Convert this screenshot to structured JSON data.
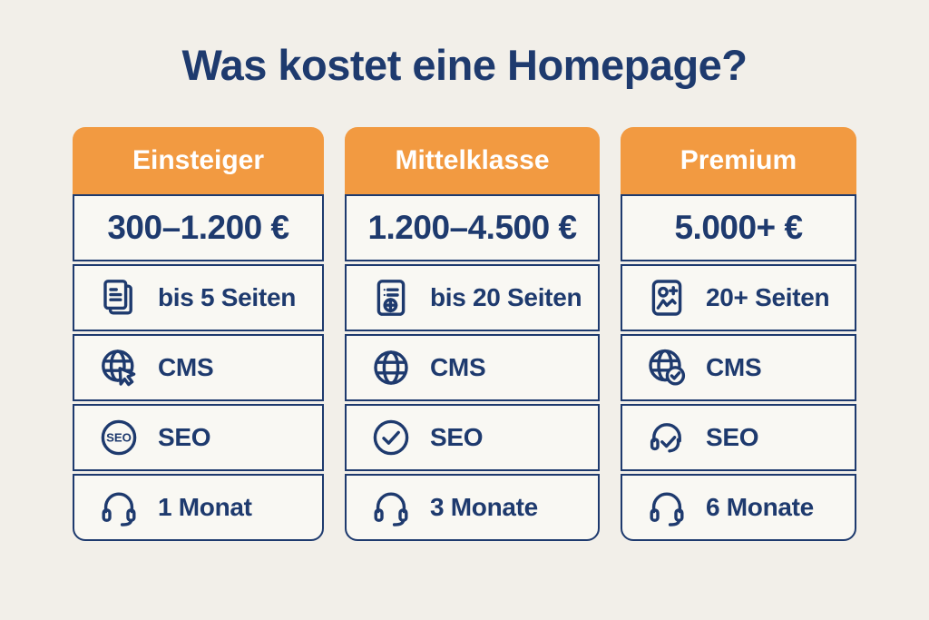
{
  "title": "Was kostet eine Homepage?",
  "colors": {
    "background": "#f2efe9",
    "card_bg": "#f9f8f3",
    "accent_orange": "#f29a41",
    "navy": "#1e3a6e",
    "header_text": "#ffffff"
  },
  "cards": [
    {
      "header": "Einsteiger",
      "price": "300–1.200 €",
      "features": [
        {
          "icon": "pages-icon",
          "label": "bis 5 Seiten"
        },
        {
          "icon": "globe-cursor-icon",
          "label": "CMS"
        },
        {
          "icon": "seo-badge-icon",
          "label": "SEO"
        },
        {
          "icon": "headset-icon",
          "label": "1 Monat"
        }
      ]
    },
    {
      "header": "Mittelklasse",
      "price": "1.200–4.500 €",
      "features": [
        {
          "icon": "webpage-form-icon",
          "label": "bis 20 Seiten"
        },
        {
          "icon": "globe-icon",
          "label": "CMS"
        },
        {
          "icon": "check-circle-icon",
          "label": "SEO"
        },
        {
          "icon": "headset-icon",
          "label": "3 Monate"
        }
      ]
    },
    {
      "header": "Premium",
      "price": "5.000+ €",
      "features": [
        {
          "icon": "user-plus-card-icon",
          "label": "20+ Seiten"
        },
        {
          "icon": "globe-check-icon",
          "label": "CMS"
        },
        {
          "icon": "headset-check-icon",
          "label": "SEO"
        },
        {
          "icon": "headset-icon",
          "label": "6 Monate"
        }
      ]
    }
  ]
}
